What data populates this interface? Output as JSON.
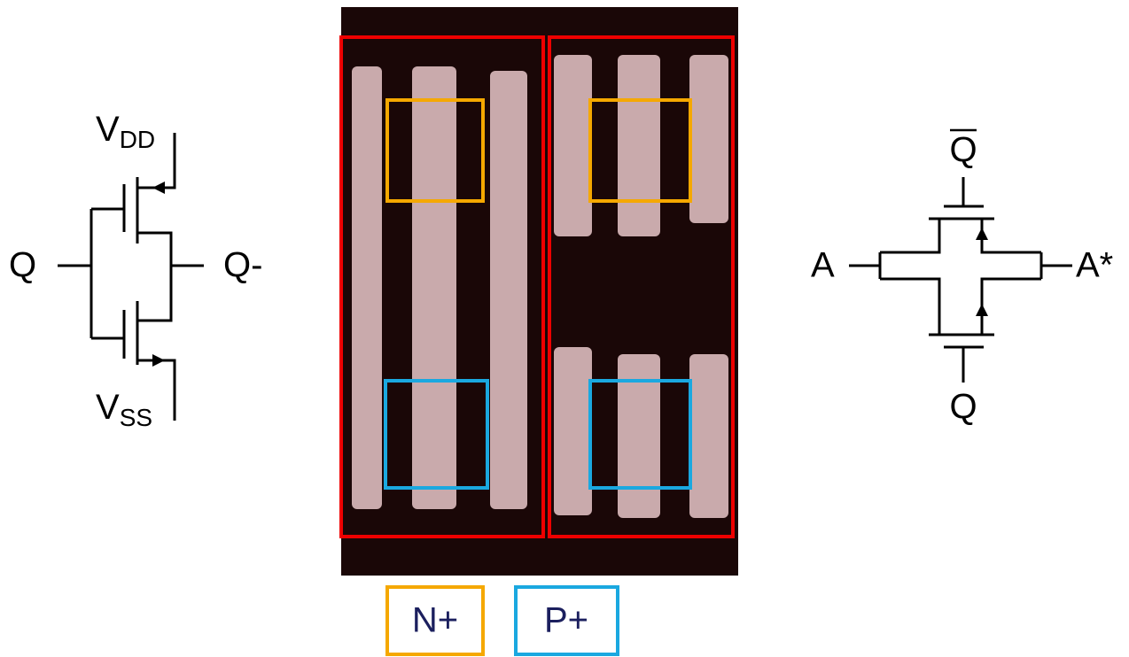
{
  "left_circuit": {
    "supply_top": {
      "main": "V",
      "sub": "DD"
    },
    "supply_bottom": {
      "main": "V",
      "sub": "SS"
    },
    "input": "Q",
    "output": "Q-"
  },
  "right_circuit": {
    "control_top": "Q",
    "control_bottom": "Q",
    "input": "A",
    "output": "A*"
  },
  "legend": [
    {
      "label": "N+"
    },
    {
      "label": "P+"
    }
  ]
}
